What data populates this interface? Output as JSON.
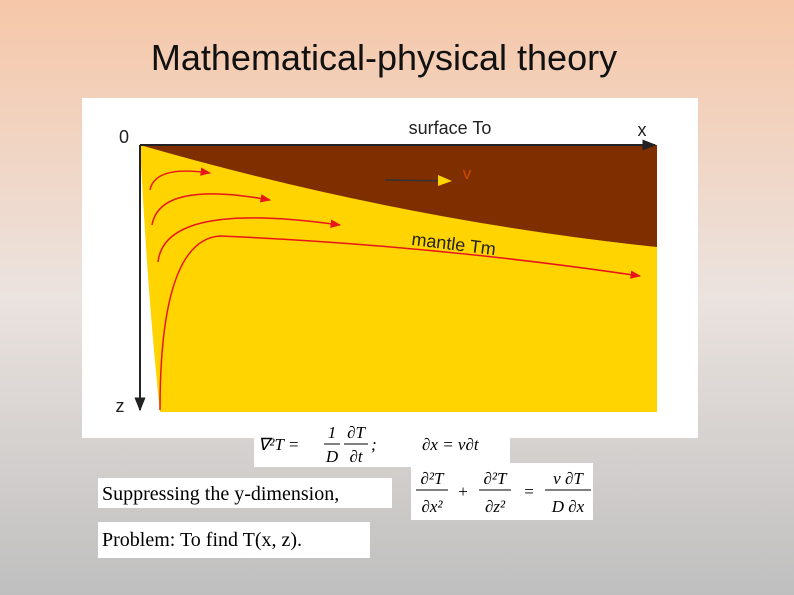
{
  "title": "Mathematical-physical theory",
  "diagram": {
    "origin": "0",
    "surface_label": "surface To",
    "x_axis": "x",
    "velocity": "v",
    "mantle_label": "mantle Tm",
    "z_axis": "z"
  },
  "equations": {
    "heat": {
      "lhs": "∇²T =",
      "coef_num": "1",
      "coef_den": "D",
      "d_num": "∂T",
      "d_den": "∂t",
      "end": ";"
    },
    "advection": "∂x = v∂t",
    "steady": {
      "t1_num": "∂²T",
      "t1_den": "∂x²",
      "plus": "+",
      "t2_num": "∂²T",
      "t2_den": "∂z²",
      "eq": "=",
      "r_num": "v ∂T",
      "r_den": "D ∂x"
    }
  },
  "notes": [
    "Suppressing the y-dimension,",
    "Problem: To find T(x, z)."
  ]
}
